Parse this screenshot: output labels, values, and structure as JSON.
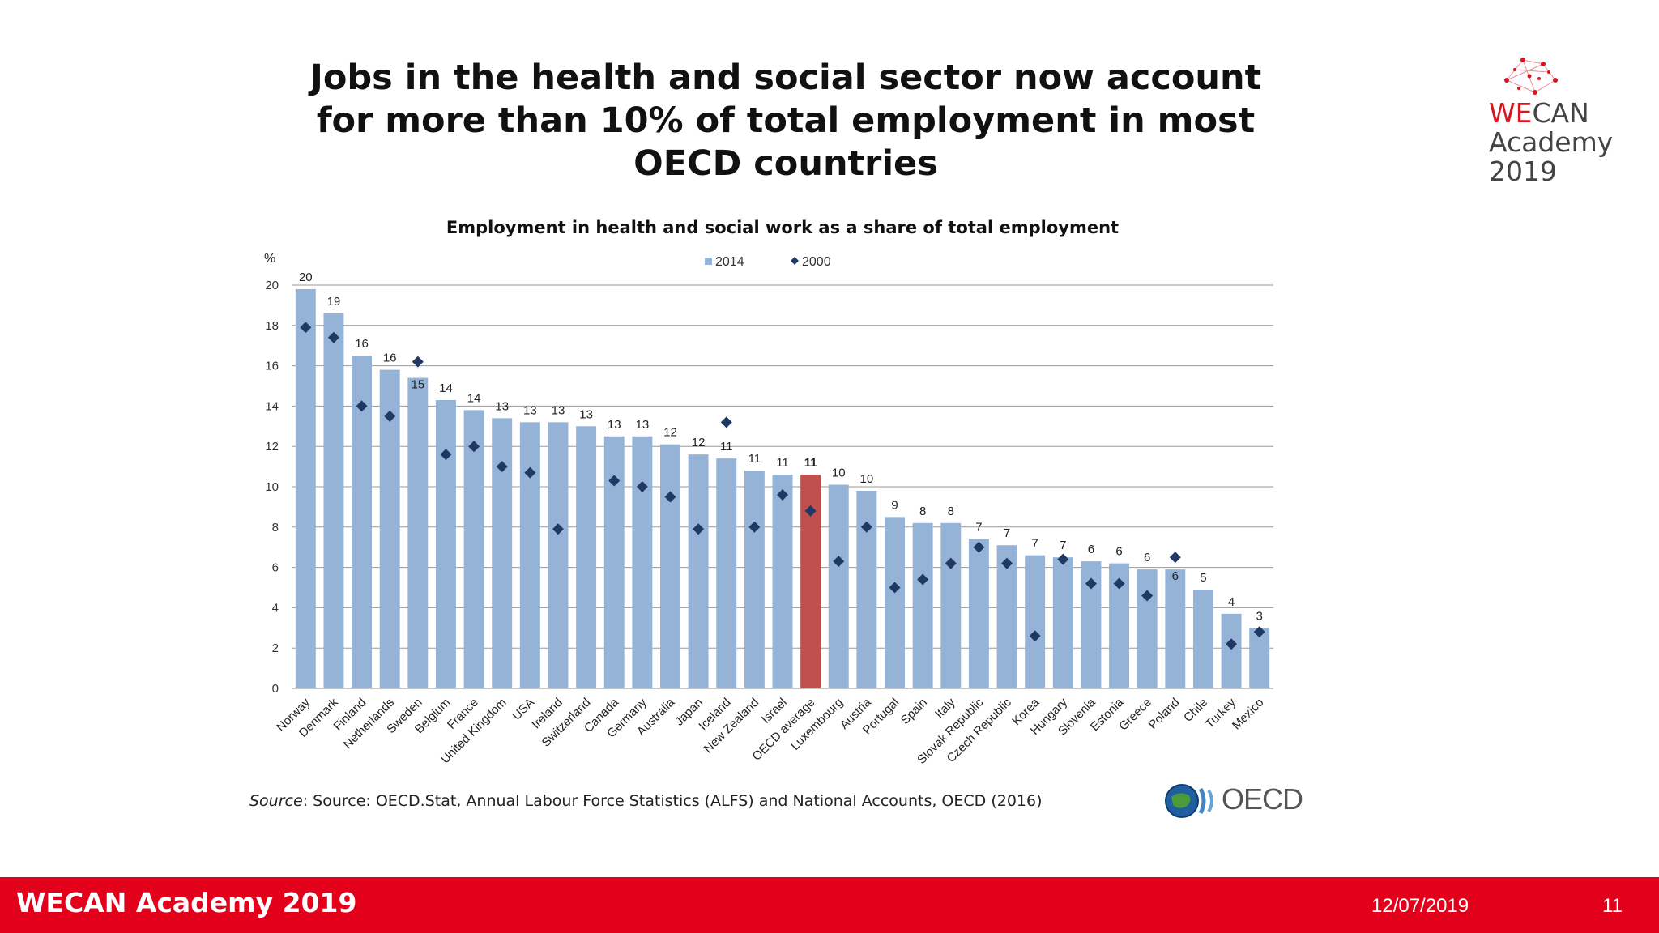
{
  "slide": {
    "title_lines": [
      "Jobs in the health and social sector now account",
      "for more than 10% of total employment in most",
      "OECD countries"
    ]
  },
  "logo": {
    "line1_a": "WE",
    "line1_b": "CAN",
    "line2": "Academy",
    "line3": "2019"
  },
  "source": {
    "label": "Source",
    "text": ": Source: OECD.Stat, Annual Labour Force Statistics (ALFS) and National Accounts, OECD (2016)"
  },
  "oecd_logo": {
    "text": "OECD"
  },
  "footer": {
    "brand": "WECAN Academy 2019",
    "date": "12/07/2019",
    "page": "11"
  },
  "colors": {
    "bar": "#95b3d7",
    "highlight": "#c0504d",
    "marker": "#1f3864",
    "footer": "#e2001a"
  },
  "chart_data": {
    "type": "bar",
    "title": "Employment in health and social work as a share of total employment",
    "ylabel": "%",
    "ylim": [
      0,
      20
    ],
    "yticks": [
      0,
      2,
      4,
      6,
      8,
      10,
      12,
      14,
      16,
      18,
      20
    ],
    "grid": true,
    "legend": {
      "placement": "top",
      "entries": [
        "2014",
        "2000"
      ]
    },
    "categories": [
      "Norway",
      "Denmark",
      "Finland",
      "Netherlands",
      "Sweden",
      "Belgium",
      "France",
      "United Kingdom",
      "USA",
      "Ireland",
      "Switzerland",
      "Canada",
      "Germany",
      "Australia",
      "Japan",
      "Iceland",
      "New Zealand",
      "Israel",
      "OECD average",
      "Luxembourg",
      "Austria",
      "Portugal",
      "Spain",
      "Italy",
      "Slovak Republic",
      "Czech Republic",
      "Korea",
      "Hungary",
      "Slovenia",
      "Estonia",
      "Greece",
      "Poland",
      "Chile",
      "Turkey",
      "Mexico"
    ],
    "highlight_category": "OECD average",
    "series": [
      {
        "name": "2014",
        "type": "bar",
        "values": [
          19.8,
          18.6,
          16.5,
          15.8,
          15.4,
          14.3,
          13.8,
          13.4,
          13.2,
          13.2,
          13.0,
          12.5,
          12.5,
          12.1,
          11.6,
          11.4,
          10.8,
          10.6,
          10.6,
          10.1,
          9.8,
          8.5,
          8.2,
          8.2,
          7.4,
          7.1,
          6.6,
          6.5,
          6.3,
          6.2,
          5.9,
          5.9,
          4.9,
          3.7,
          3.0
        ],
        "labels": [
          "20",
          "19",
          "16",
          "16",
          "15",
          "14",
          "14",
          "13",
          "13",
          "13",
          "13",
          "13",
          "13",
          "12",
          "12",
          "11",
          "11",
          "11",
          "11",
          "10",
          "10",
          "9",
          "8",
          "8",
          "7",
          "7",
          "7",
          "7",
          "6",
          "6",
          "6",
          "6",
          "5",
          "4",
          "3"
        ]
      },
      {
        "name": "2000",
        "type": "marker",
        "values": [
          17.9,
          17.4,
          14.0,
          13.5,
          16.2,
          11.6,
          12.0,
          11.0,
          10.7,
          7.9,
          null,
          10.3,
          10.0,
          9.5,
          7.9,
          13.2,
          8.0,
          9.6,
          8.8,
          6.3,
          8.0,
          5.0,
          5.4,
          6.2,
          7.0,
          6.2,
          2.6,
          6.4,
          5.2,
          5.2,
          4.6,
          6.5,
          null,
          2.2,
          2.8
        ]
      }
    ]
  }
}
